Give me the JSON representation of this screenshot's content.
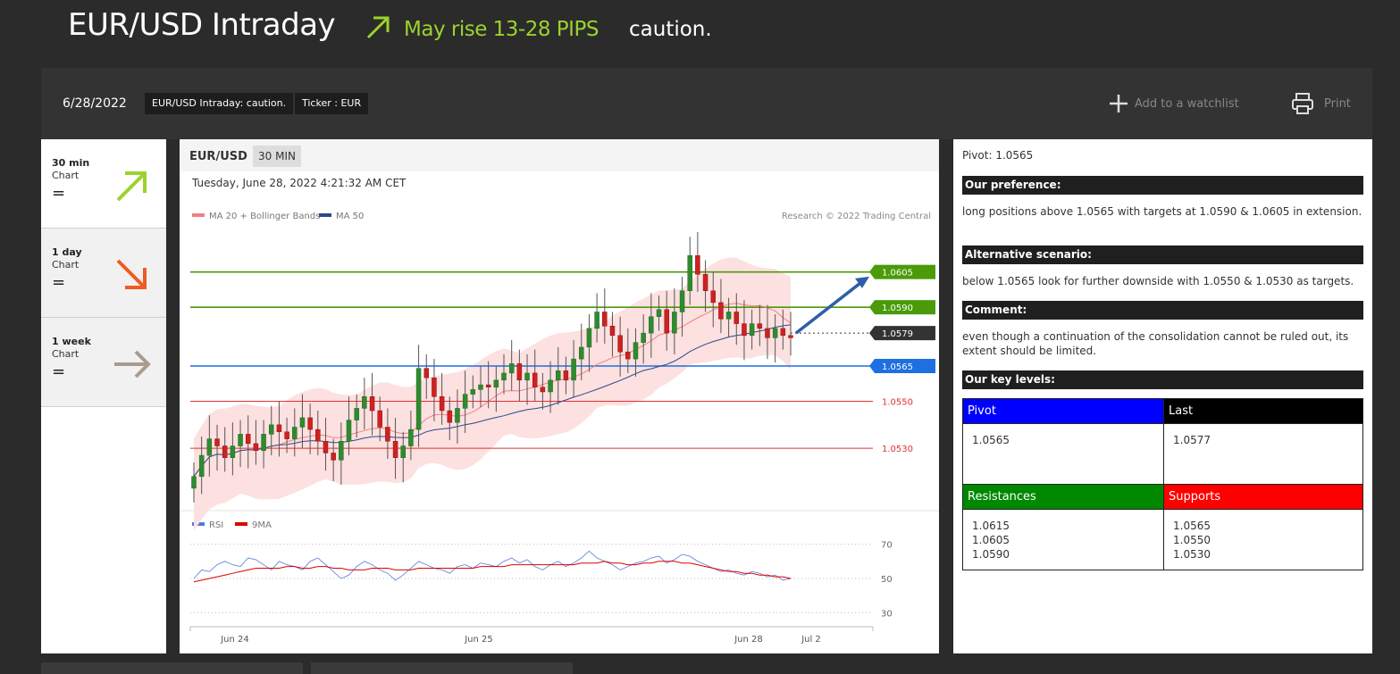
{
  "header": {
    "title": "EUR/USD Intraday",
    "direction_icon": "arrow-up-right-icon",
    "outlook": "May rise 13-28 PIPS",
    "status": "caution.",
    "outlook_color": "#9bd22d"
  },
  "toolbar": {
    "date": "6/28/2022",
    "tag_title": "EUR/USD Intraday: caution.",
    "tag_ticker": "Ticker : EUR",
    "watchlist_label": "Add to a watchlist",
    "print_label": "Print"
  },
  "timeframes": [
    {
      "name": "30 min",
      "sub": "Chart",
      "value": "=",
      "direction": "up",
      "color": "#9bd22d"
    },
    {
      "name": "1 day",
      "sub": "Chart",
      "value": "=",
      "direction": "down",
      "color": "#f15a24"
    },
    {
      "name": "1 week",
      "sub": "Chart",
      "value": "=",
      "direction": "flat",
      "color": "#a89c8e"
    }
  ],
  "chart": {
    "symbol": "EUR/USD",
    "timeframe": "30 MIN",
    "timestamp": "Tuesday, June 28, 2022 4:21:32 AM CET",
    "legend_ma20": "MA 20 + Bollinger Bands",
    "legend_ma50": "MA 50",
    "copyright": "Research © 2022 Trading Central",
    "rsi_legend": "RSI",
    "rsi_ma_legend": "9MA"
  },
  "chart_data": {
    "type": "line",
    "x_labels": [
      "Jun 24",
      "Jun 25",
      "Jun 28",
      "Jul 2"
    ],
    "price_ylim": [
      1.0505,
      1.0625
    ],
    "levels": [
      {
        "label": "1.0605",
        "value": 1.0605,
        "color": "#4a9a0a",
        "style": "tag"
      },
      {
        "label": "1.0590",
        "value": 1.059,
        "color": "#4a9a0a",
        "style": "tag"
      },
      {
        "label": "1.0579",
        "value": 1.0579,
        "color": "#333333",
        "style": "tag"
      },
      {
        "label": "1.0565",
        "value": 1.0565,
        "color": "#1e6fe0",
        "style": "tag"
      },
      {
        "label": "1.0550",
        "value": 1.055,
        "color": "#e03030",
        "style": "text"
      },
      {
        "label": "1.0530",
        "value": 1.053,
        "color": "#e03030",
        "style": "text"
      }
    ],
    "close_series": [
      1.0518,
      1.0527,
      1.0534,
      1.0531,
      1.0526,
      1.0531,
      1.0536,
      1.0532,
      1.0529,
      1.0536,
      1.054,
      1.0537,
      1.0534,
      1.0539,
      1.0543,
      1.0538,
      1.0533,
      1.0528,
      1.0525,
      1.0533,
      1.0542,
      1.0547,
      1.0552,
      1.0546,
      1.0539,
      1.0533,
      1.0526,
      1.0531,
      1.0538,
      1.0564,
      1.056,
      1.0552,
      1.0546,
      1.0541,
      1.0547,
      1.0553,
      1.0555,
      1.0557,
      1.0556,
      1.0559,
      1.0562,
      1.0566,
      1.0559,
      1.0562,
      1.0556,
      1.0554,
      1.0559,
      1.0563,
      1.0559,
      1.0568,
      1.0573,
      1.0581,
      1.0588,
      1.0582,
      1.0578,
      1.0571,
      1.0568,
      1.0575,
      1.0579,
      1.0586,
      1.0589,
      1.0579,
      1.0588,
      1.0597,
      1.0612,
      1.0604,
      1.0597,
      1.0592,
      1.0585,
      1.0588,
      1.0583,
      1.0578,
      1.0583,
      1.0581,
      1.0577,
      1.0581,
      1.0578,
      1.0577
    ],
    "rsi_series": [
      50,
      55,
      54,
      58,
      60,
      58,
      57,
      62,
      61,
      58,
      55,
      60,
      58,
      57,
      55,
      60,
      62,
      58,
      54,
      50,
      52,
      57,
      60,
      58,
      55,
      53,
      49,
      52,
      56,
      60,
      58,
      56,
      55,
      53,
      57,
      58,
      56,
      59,
      58,
      57,
      60,
      62,
      59,
      61,
      57,
      55,
      58,
      60,
      57,
      59,
      62,
      66,
      62,
      60,
      58,
      55,
      57,
      59,
      60,
      62,
      63,
      59,
      61,
      64,
      63,
      60,
      58,
      56,
      54,
      55,
      53,
      52,
      54,
      53,
      51,
      52,
      49,
      50
    ],
    "rsi_ma_series": [
      48,
      49,
      50,
      51,
      52,
      53,
      54,
      55,
      56,
      56,
      56,
      56,
      57,
      57,
      56,
      56,
      57,
      57,
      56,
      56,
      55,
      55,
      55,
      56,
      56,
      56,
      55,
      55,
      55,
      56,
      56,
      56,
      56,
      56,
      56,
      56,
      56,
      57,
      57,
      57,
      57,
      58,
      58,
      58,
      58,
      58,
      58,
      58,
      58,
      58,
      59,
      59,
      59,
      60,
      59,
      59,
      58,
      58,
      59,
      59,
      60,
      60,
      60,
      59,
      59,
      58,
      57,
      56,
      55,
      54,
      54,
      53,
      53,
      52,
      52,
      51,
      51,
      50
    ],
    "rsi_ylim": [
      25,
      75
    ],
    "rsi_ticks": [
      "70",
      "50",
      "30"
    ],
    "projection": {
      "from": 1.0579,
      "to": 1.0603
    },
    "grid": false,
    "legend": "top-left"
  },
  "panel": {
    "pivot_line": "Pivot: 1.0565",
    "pref_head": "Our preference:",
    "pref_text": "long positions above 1.0565 with targets at 1.0590 & 1.0605 in extension.",
    "alt_head": "Alternative scenario:",
    "alt_text": "below 1.0565 look for further downside with 1.0550 & 1.0530 as targets.",
    "comment_head": "Comment:",
    "comment_text": "even though a continuation of the consolidation cannot be ruled out, its extent should be limited.",
    "levels_head": "Our key levels:",
    "table": {
      "pivot_label": "Pivot",
      "pivot_value": "1.0565",
      "last_label": "Last",
      "last_value": "1.0577",
      "res_label": "Resistances",
      "res_values": [
        "1.0615",
        "1.0605",
        "1.0590"
      ],
      "sup_label": "Supports",
      "sup_values": [
        "1.0565",
        "1.0550",
        "1.0530"
      ],
      "colors": {
        "pivot": "#0000ff",
        "last": "#000000",
        "res": "#008800",
        "sup": "#ff0000"
      }
    }
  }
}
